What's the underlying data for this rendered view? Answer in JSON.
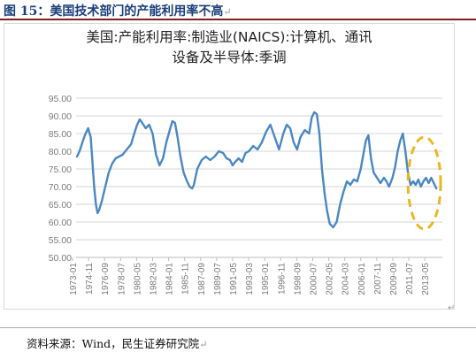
{
  "figure": {
    "title": "图 15：美国技术部门的产能利用率不高",
    "paragraph_mark": "↵",
    "source": "资料来源：Wind，民生证券研究院"
  },
  "chart_data": {
    "type": "line",
    "title_lines": [
      "美国:产能利用率:制造业(NAICS):计算机、通讯",
      "设备及半导体:季调"
    ],
    "xlabel": "",
    "ylabel": "",
    "ylim": [
      50,
      95
    ],
    "yticks": [
      "95.00",
      "90.00",
      "85.00",
      "80.00",
      "75.00",
      "70.00",
      "65.00",
      "60.00",
      "55.00",
      "50.00"
    ],
    "xticks": [
      "1973-01",
      "1974-11",
      "1976-09",
      "1978-07",
      "1980-05",
      "1982-03",
      "1984-01",
      "1985-11",
      "1987-09",
      "1989-07",
      "1991-05",
      "1993-03",
      "1995-01",
      "1996-11",
      "1998-09",
      "2000-07",
      "2002-05",
      "2004-03",
      "2006-01",
      "2007-11",
      "2009-09",
      "2011-07",
      "2013-05"
    ],
    "xlim": [
      1972.9,
      2015.5
    ],
    "grid": "horizontal",
    "line_color": "#4a88c4",
    "highlight_color": "#e8b923",
    "highlight": {
      "x_range": [
        2011.5,
        2015.3
      ],
      "y_range": [
        58,
        84
      ]
    },
    "series": [
      {
        "x": [
          1973.0,
          1973.3,
          1973.7,
          1974.0,
          1974.3,
          1974.6,
          1974.8,
          1975.0,
          1975.2,
          1975.4,
          1975.6,
          1975.9,
          1976.3,
          1976.7,
          1977.1,
          1977.5,
          1977.9,
          1978.3,
          1978.8,
          1979.3,
          1979.6,
          1980.0,
          1980.3,
          1980.6,
          1981.0,
          1981.4,
          1981.8,
          1982.2,
          1982.6,
          1983.0,
          1983.4,
          1983.8,
          1984.1,
          1984.4,
          1984.7,
          1985.0,
          1985.4,
          1985.8,
          1986.1,
          1986.4,
          1986.6,
          1987.0,
          1987.5,
          1988.0,
          1988.5,
          1989.0,
          1989.5,
          1990.0,
          1990.4,
          1990.8,
          1991.1,
          1991.4,
          1991.8,
          1992.2,
          1992.6,
          1993.0,
          1993.5,
          1994.0,
          1994.5,
          1995.0,
          1995.5,
          1996.0,
          1996.5,
          1997.0,
          1997.4,
          1997.8,
          1998.2,
          1998.6,
          1999.0,
          1999.5,
          2000.0,
          2000.3,
          2000.6,
          2000.9,
          2001.2,
          2001.5,
          2001.8,
          2002.1,
          2002.4,
          2002.8,
          2003.2,
          2003.6,
          2004.0,
          2004.4,
          2004.8,
          2005.2,
          2005.6,
          2006.0,
          2006.3,
          2006.6,
          2006.9,
          2007.2,
          2007.5,
          2007.9,
          2008.3,
          2008.7,
          2009.0,
          2009.3,
          2009.7,
          2010.0,
          2010.3,
          2010.6,
          2010.9,
          2011.2,
          2011.5,
          2011.8,
          2012.1,
          2012.4,
          2012.7,
          2013.0,
          2013.3,
          2013.6,
          2013.9,
          2014.2,
          2014.5,
          2014.8
        ],
        "y": [
          78.5,
          80.0,
          83.0,
          85.0,
          86.5,
          84.0,
          77.0,
          70.0,
          65.0,
          62.5,
          63.5,
          66.0,
          70.0,
          74.0,
          76.5,
          78.0,
          78.5,
          79.0,
          80.5,
          82.0,
          84.5,
          87.5,
          89.0,
          88.0,
          86.5,
          87.5,
          85.0,
          79.0,
          76.0,
          78.0,
          82.5,
          86.0,
          88.5,
          88.0,
          84.0,
          79.0,
          74.0,
          71.5,
          70.0,
          69.5,
          70.5,
          75.0,
          77.5,
          78.5,
          77.5,
          78.5,
          80.0,
          79.5,
          78.0,
          77.5,
          76.0,
          77.0,
          78.0,
          77.0,
          79.5,
          80.0,
          81.5,
          80.5,
          82.5,
          85.5,
          87.5,
          84.0,
          80.5,
          85.0,
          87.5,
          86.5,
          82.5,
          80.5,
          84.0,
          86.0,
          85.0,
          89.5,
          91.0,
          90.5,
          85.0,
          75.0,
          68.0,
          63.0,
          59.5,
          58.5,
          60.0,
          65.0,
          68.5,
          71.5,
          70.5,
          72.0,
          71.5,
          75.0,
          79.0,
          83.0,
          84.5,
          78.0,
          74.0,
          72.5,
          71.0,
          72.5,
          71.5,
          70.0,
          72.5,
          75.5,
          80.0,
          83.0,
          85.0,
          80.0,
          74.0,
          70.5,
          71.5,
          70.5,
          72.0,
          70.0,
          71.5,
          72.5,
          71.0,
          72.5,
          71.0,
          69.5
        ]
      }
    ]
  }
}
